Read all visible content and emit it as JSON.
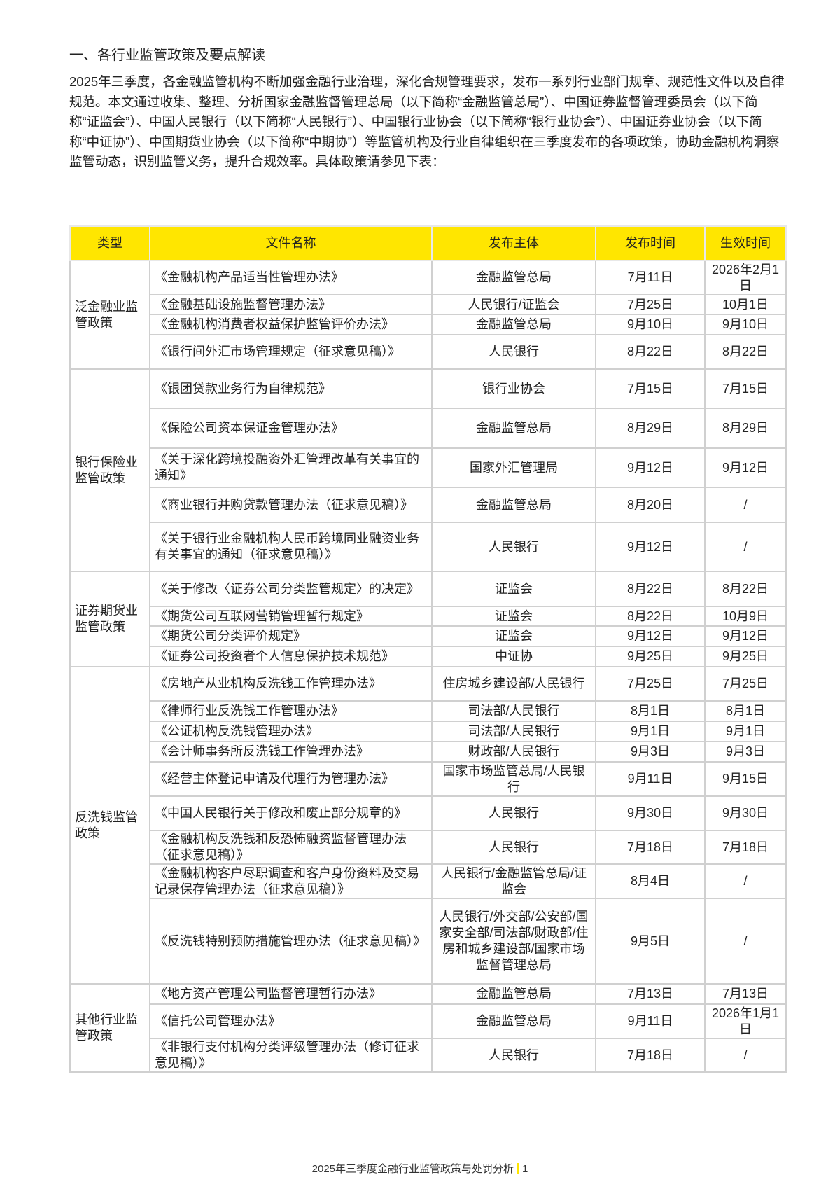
{
  "heading": "一、各行业监管政策及要点解读",
  "intro": "2025年三季度，各金融监管机构不断加强金融行业治理，深化合规管理要求，发布一系列行业部门规章、规范性文件以及自律规范。本文通过收集、整理、分析国家金融监督管理总局（以下简称“金融监管总局”）、中国证券监督管理委员会（以下简称“证监会”）、中国人民银行（以下简称“人民银行”）、中国银行业协会（以下简称“银行业协会”）、中国证券业协会（以下简称“中证协”）、中国期货业协会（以下简称“中期协”）等监管机构及行业自律组织在三季度发布的各项政策，协助金融机构洞察监管动态，识别监管义务，提升合规效率。具体政策请参见下表：",
  "colors": {
    "header_bg": "#ffe600",
    "border": "#d0d0d0"
  },
  "table": {
    "headers": [
      "类型",
      "文件名称",
      "发布主体",
      "发布时间",
      "生效时间"
    ],
    "groups": [
      {
        "category": "泛金融业监管政策",
        "rows": [
          [
            "《金融机构产品适当性管理办法》",
            "金融监管总局",
            "7月11日",
            "2026年2月1日"
          ],
          [
            "《金融基础设施监督管理办法》",
            "人民银行/证监会",
            "7月25日",
            "10月1日"
          ],
          [
            "《金融机构消费者权益保护监管评价办法》",
            "金融监管总局",
            "9月10日",
            "9月10日"
          ],
          [
            "《银行间外汇市场管理规定（征求意见稿）》",
            "人民银行",
            "8月22日",
            "8月22日"
          ]
        ]
      },
      {
        "category": "银行保险业监管政策",
        "rows": [
          [
            "《银团贷款业务行为自律规范》",
            "银行业协会",
            "7月15日",
            "7月15日"
          ],
          [
            "《保险公司资本保证金管理办法》",
            "金融监管总局",
            "8月29日",
            "8月29日"
          ],
          [
            "《关于深化跨境投融资外汇管理改革有关事宜的通知》",
            "国家外汇管理局",
            "9月12日",
            "9月12日"
          ],
          [
            "《商业银行并购贷款管理办法（征求意见稿）》",
            "金融监管总局",
            "8月20日",
            "/"
          ],
          [
            "《关于银行业金融机构人民币跨境同业融资业务有关事宜的通知（征求意见稿）》",
            "人民银行",
            "9月12日",
            "/"
          ]
        ]
      },
      {
        "category": "证券期货业监管政策",
        "rows": [
          [
            "《关于修改〈证券公司分类监管规定〉的决定》",
            "证监会",
            "8月22日",
            "8月22日"
          ],
          [
            "《期货公司互联网营销管理暂行规定》",
            "证监会",
            "8月22日",
            "10月9日"
          ],
          [
            "《期货公司分类评价规定》",
            "证监会",
            "9月12日",
            "9月12日"
          ],
          [
            "《证券公司投资者个人信息保护技术规范》",
            "中证协",
            "9月25日",
            "9月25日"
          ]
        ]
      },
      {
        "category": "反洗钱监管政策",
        "rows": [
          [
            "《房地产从业机构反洗钱工作管理办法》",
            "住房城乡建设部/人民银行",
            "7月25日",
            "7月25日"
          ],
          [
            "《律师行业反洗钱工作管理办法》",
            "司法部/人民银行",
            "8月1日",
            "8月1日"
          ],
          [
            "《公证机构反洗钱管理办法》",
            "司法部/人民银行",
            "9月1日",
            "9月1日"
          ],
          [
            "《会计师事务所反洗钱工作管理办法》",
            "财政部/人民银行",
            "9月3日",
            "9月3日"
          ],
          [
            "《经营主体登记申请及代理行为管理办法》",
            "国家市场监管总局/人民银行",
            "9月11日",
            "9月15日"
          ],
          [
            "《中国人民银行关于修改和废止部分规章的》",
            "人民银行",
            "9月30日",
            "9月30日"
          ],
          [
            "《金融机构反洗钱和反恐怖融资监督管理办法（征求意见稿）》",
            "人民银行",
            "7月18日",
            "7月18日"
          ],
          [
            "《金融机构客户尽职调查和客户身份资料及交易记录保存管理办法（征求意见稿）》",
            "人民银行/金融监管总局/证监会",
            "8月4日",
            "/"
          ],
          [
            "《反洗钱特别预防措施管理办法（征求意见稿）》",
            "人民银行/外交部/公安部/国家安全部/司法部/财政部/住房和城乡建设部/国家市场监督管理总局",
            "9月5日",
            "/"
          ]
        ]
      },
      {
        "category": "其他行业监管政策",
        "rows": [
          [
            "《地方资产管理公司监督管理暂行办法》",
            "金融监管总局",
            "7月13日",
            "7月13日"
          ],
          [
            "《信托公司管理办法》",
            "金融监管总局",
            "9月11日",
            "2026年1月1日"
          ],
          [
            "《非银行支付机构分类评级管理办法（修订征求意见稿）》",
            "人民银行",
            "7月18日",
            "/"
          ]
        ]
      }
    ]
  },
  "footer": {
    "title": "2025年三季度金融行业监管政策与处罚分析",
    "page": "1"
  }
}
